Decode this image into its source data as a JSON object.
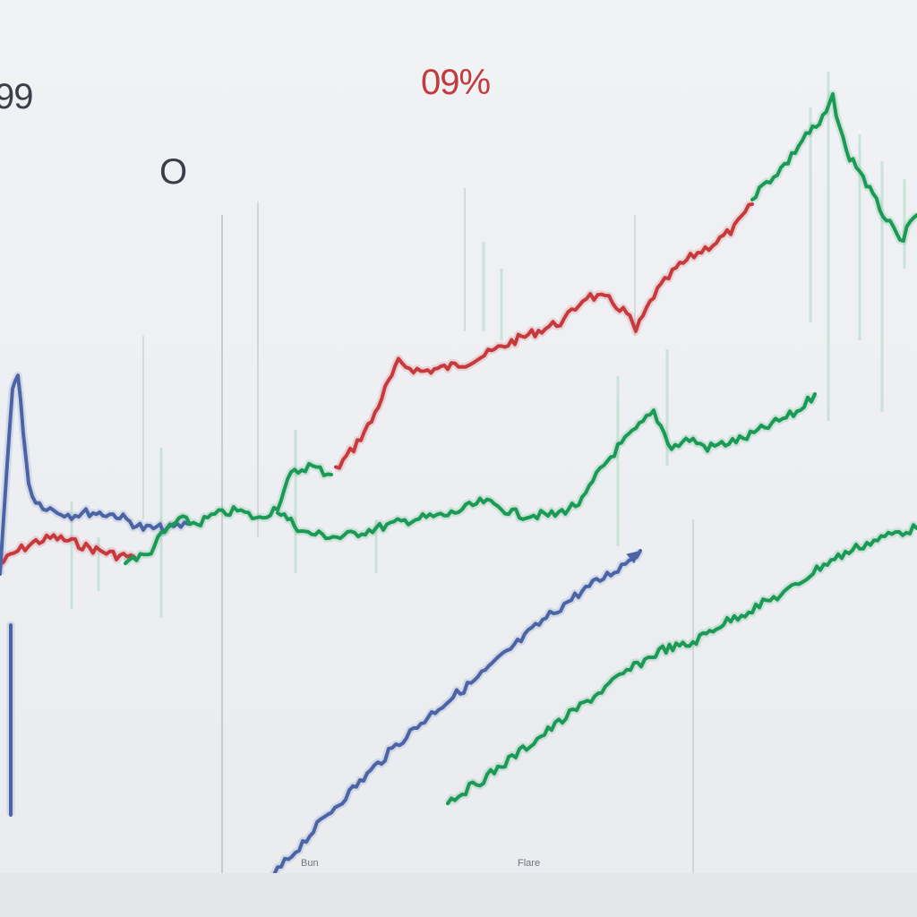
{
  "chart_data": {
    "type": "line",
    "title": "",
    "xlabel": "",
    "ylabel": "",
    "annotations": {
      "left": "99",
      "center_left": "O",
      "top_center": "09%"
    },
    "tick_labels": [
      "Bun",
      "Flare"
    ],
    "grid": false,
    "colors": {
      "red": "#c8393b",
      "green": "#1a9a55",
      "blue": "#4a64a6",
      "ghost_green": "#9fd3b8"
    },
    "series": [
      {
        "color": "red",
        "x": [
          0,
          20,
          40,
          60,
          80,
          100,
          130,
          150
        ],
        "y": [
          630,
          615,
          605,
          600,
          605,
          612,
          620,
          622
        ]
      },
      {
        "color": "red",
        "x": [
          375,
          395,
          415,
          430,
          445,
          470,
          500,
          520,
          545,
          575,
          605,
          630,
          655,
          680,
          700,
          710,
          730,
          755,
          775,
          800,
          820,
          840
        ],
        "y": [
          525,
          500,
          470,
          435,
          405,
          415,
          410,
          405,
          395,
          380,
          368,
          358,
          330,
          335,
          350,
          370,
          330,
          300,
          285,
          270,
          255,
          228
        ]
      },
      {
        "color": "blue",
        "x": [
          0,
          8,
          14,
          20,
          26,
          32,
          40,
          60,
          80,
          100,
          130,
          160,
          190,
          210
        ],
        "y": [
          640,
          520,
          430,
          420,
          480,
          540,
          560,
          570,
          575,
          572,
          575,
          590,
          590,
          585
        ]
      },
      {
        "color": "blue",
        "x": [
          12,
          12,
          12
        ],
        "y": [
          890,
          700,
          910
        ]
      },
      {
        "color": "green",
        "x": [
          140,
          165,
          180,
          200,
          220,
          240,
          265,
          290,
          310,
          325,
          345,
          370
        ],
        "y": [
          625,
          620,
          598,
          580,
          585,
          575,
          570,
          580,
          565,
          530,
          520,
          530
        ]
      },
      {
        "color": "green",
        "x": [
          310,
          340,
          380,
          420,
          460,
          500,
          540,
          580,
          620,
          650,
          670,
          690,
          710,
          730,
          750,
          770,
          790,
          810,
          830,
          850,
          870,
          890,
          910
        ],
        "y": [
          570,
          595,
          600,
          590,
          580,
          575,
          560,
          575,
          575,
          560,
          525,
          500,
          480,
          460,
          500,
          490,
          500,
          495,
          490,
          480,
          470,
          460,
          440
        ]
      },
      {
        "color": "green",
        "x": [
          840,
          860,
          880,
          900,
          915,
          930,
          945,
          960,
          975,
          990,
          1005,
          1024
        ],
        "y": [
          220,
          200,
          180,
          150,
          140,
          110,
          170,
          190,
          220,
          245,
          270,
          240
        ]
      },
      {
        "color": "blue",
        "x": [
          290,
          330,
          370,
          410,
          450,
          490,
          530,
          570,
          610,
          650,
          690,
          715
        ],
        "y": [
          995,
          950,
          905,
          865,
          825,
          790,
          760,
          725,
          690,
          660,
          635,
          615
        ]
      },
      {
        "color": "green",
        "x": [
          500,
          540,
          580,
          620,
          660,
          700,
          740,
          770,
          800,
          840,
          880,
          920,
          960,
          1000,
          1024
        ],
        "y": [
          895,
          870,
          840,
          810,
          780,
          750,
          725,
          720,
          700,
          680,
          660,
          630,
          610,
          595,
          590
        ]
      }
    ]
  }
}
